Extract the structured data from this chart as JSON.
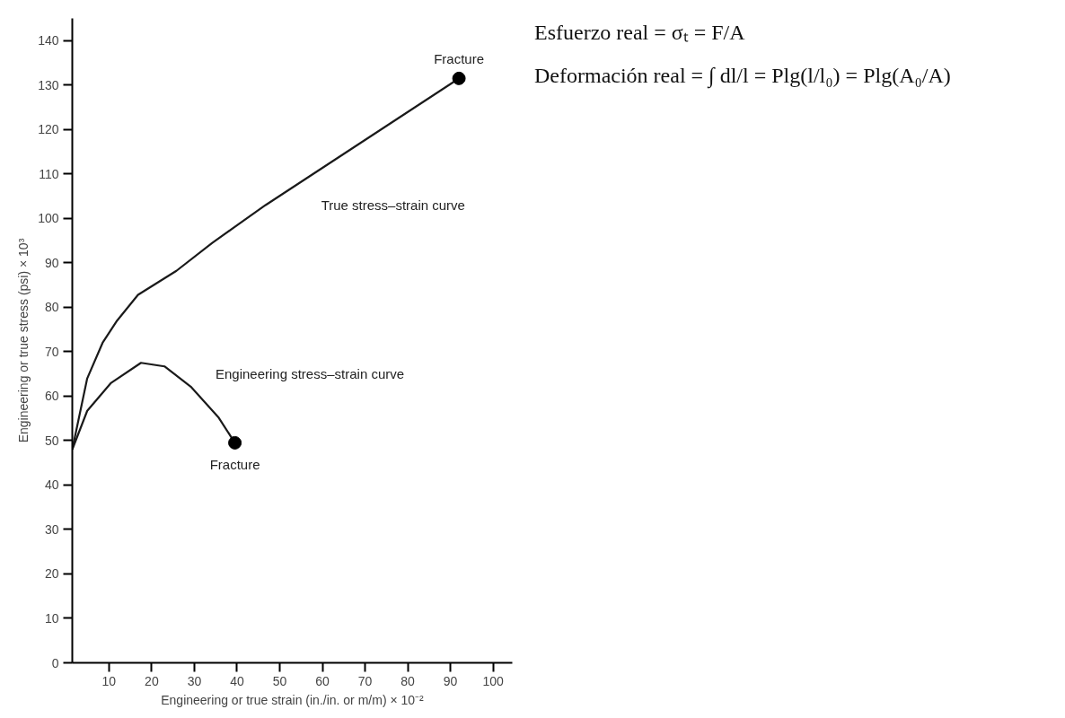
{
  "chart_data": {
    "type": "line",
    "xlabel": "Engineering or true strain (in./in. or m/m) × 10⁻²",
    "ylabel": "Engineering or true stress (psi) × 10³",
    "xlim": [
      1.4,
      104.5
    ],
    "ylim": [
      0,
      145
    ],
    "xticks": [
      10,
      20,
      30,
      40,
      50,
      60,
      70,
      80,
      90,
      100
    ],
    "yticks": [
      0,
      10,
      20,
      30,
      40,
      50,
      60,
      70,
      80,
      90,
      100,
      110,
      120,
      130,
      140
    ],
    "grid": false,
    "line_style": "solid",
    "marker": "none",
    "series": [
      {
        "name": "True stress–strain curve",
        "color": "#1a1a1a",
        "x": [
          1.4,
          4.9,
          8.5,
          11.9,
          16.8,
          25.8,
          34.2,
          46.7,
          92
        ],
        "values": [
          48,
          64,
          72,
          77,
          82.8,
          88.2,
          94.5,
          103,
          131.5
        ]
      },
      {
        "name": "Engineering stress–strain curve",
        "color": "#1a1a1a",
        "x": [
          1.4,
          4.9,
          10.5,
          17.5,
          23,
          29.3,
          35.6,
          39.5
        ],
        "values": [
          48,
          56.7,
          63,
          67.5,
          66.7,
          62,
          55.3,
          49.5
        ]
      },
      {
        "type": "scatter",
        "marker": "circle",
        "color": "#000000",
        "x": [
          39.5,
          92
        ],
        "values": [
          49.5,
          131.5
        ]
      }
    ],
    "annotations": [
      {
        "text": "Fracture",
        "x": 39.5,
        "y": 49.5
      },
      {
        "text": "Fracture",
        "x": 92,
        "y": 131.5
      },
      "Esfuerzo real = σₜ = F/A",
      "Deformación real = ∫ dl/l = Plg(l/l₀) = Plg(A₀/A)"
    ]
  }
}
